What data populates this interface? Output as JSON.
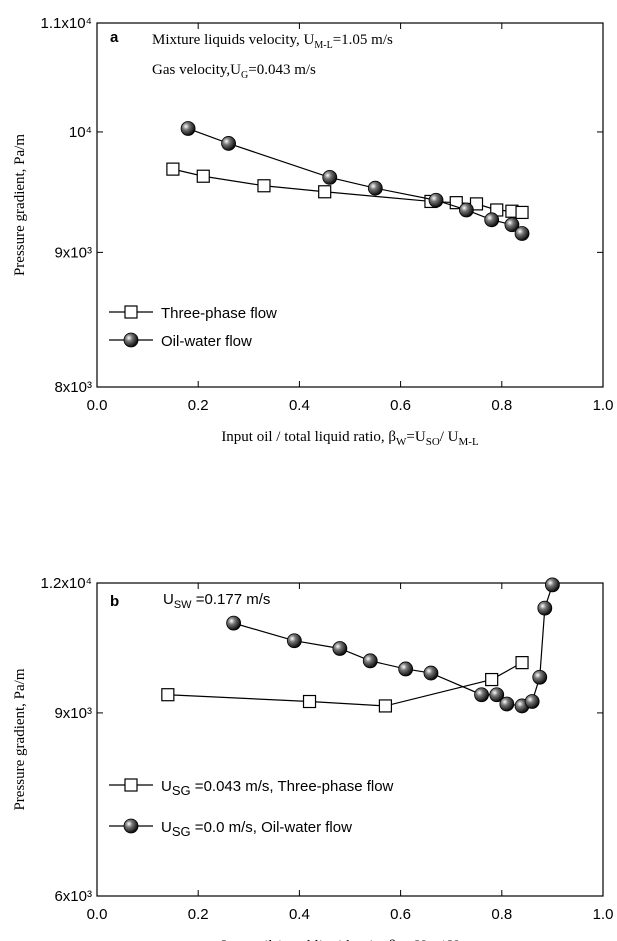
{
  "chart_data": [
    {
      "type": "line",
      "panel_label": "a",
      "annotations": [
        [
          "Mixture liquids  velocity, U",
          "M-L",
          "=1.05 m/s"
        ],
        [
          "Gas velocity,U",
          "G",
          "=0.043 m/s"
        ]
      ],
      "xlabel": [
        "Input oil / total liquid ratio, β",
        "W",
        "=U",
        "SO",
        "/ U",
        "M-L"
      ],
      "ylabel": "Pressure gradient, Pa/m",
      "xlim": [
        0,
        1
      ],
      "ylim": [
        8000,
        11000
      ],
      "yscale": "log",
      "xticks": [
        {
          "value": 0,
          "label": "0.0"
        },
        0.2,
        0.4,
        0.6,
        0.8,
        {
          "value": 1,
          "label": "1.0"
        }
      ],
      "yticks": [
        {
          "value": 8000,
          "label": "8x10³"
        },
        {
          "value": 9000,
          "label": "9x10³"
        },
        {
          "value": 10000,
          "label": "10⁴"
        },
        {
          "value": 11000,
          "label": "1.1x10⁴"
        }
      ],
      "legend": "lower left",
      "series": [
        {
          "name": "Three-phase flow",
          "marker": "square",
          "color": "#000000",
          "x": [
            0.15,
            0.21,
            0.33,
            0.45,
            0.66,
            0.71,
            0.75,
            0.79,
            0.82,
            0.84
          ],
          "values": [
            9680,
            9620,
            9540,
            9490,
            9410,
            9400,
            9390,
            9340,
            9330,
            9320
          ]
        },
        {
          "name": "Oil-water flow",
          "marker": "circle",
          "color": "#000000",
          "x": [
            0.18,
            0.26,
            0.46,
            0.55,
            0.67,
            0.73,
            0.78,
            0.82,
            0.84
          ],
          "values": [
            10030,
            9900,
            9610,
            9520,
            9420,
            9340,
            9260,
            9220,
            9150
          ]
        }
      ]
    },
    {
      "type": "line",
      "panel_label": "b",
      "annotations": [
        [
          "U",
          "SW",
          " =0.177 m/s"
        ]
      ],
      "xlabel": [
        "Input oil / total liquid ratio, β",
        "W",
        "=U",
        "SO",
        "/ U",
        "M-L"
      ],
      "ylabel": "Pressure gradient, Pa/m",
      "xlim": [
        0,
        1
      ],
      "ylim": [
        6000,
        12000
      ],
      "yscale": "log",
      "xticks": [
        {
          "value": 0,
          "label": "0.0"
        },
        0.2,
        0.4,
        0.6,
        0.8,
        {
          "value": 1,
          "label": "1.0"
        }
      ],
      "yticks": [
        {
          "value": 6000,
          "label": "6x10³"
        },
        {
          "value": 9000,
          "label": "9x10³"
        },
        {
          "value": 12000,
          "label": "1.2x10⁴"
        }
      ],
      "legend": "lower left",
      "series": [
        {
          "name": [
            "U",
            "SG",
            " =0.043 m/s, Three-phase flow"
          ],
          "marker": "square",
          "color": "#000000",
          "x": [
            0.14,
            0.42,
            0.57,
            0.78,
            0.84
          ],
          "values": [
            9370,
            9230,
            9140,
            9690,
            10060
          ]
        },
        {
          "name": [
            "U",
            "SG",
            " =0.0 m/s, Oil-water flow"
          ],
          "marker": "circle",
          "color": "#000000",
          "x": [
            0.27,
            0.39,
            0.48,
            0.54,
            0.61,
            0.66,
            0.76,
            0.79,
            0.81,
            0.84,
            0.86,
            0.875,
            0.885,
            0.9
          ],
          "values": [
            10980,
            10560,
            10380,
            10100,
            9920,
            9830,
            9370,
            9370,
            9180,
            9140,
            9230,
            9740,
            11350,
            11950
          ]
        }
      ]
    }
  ]
}
